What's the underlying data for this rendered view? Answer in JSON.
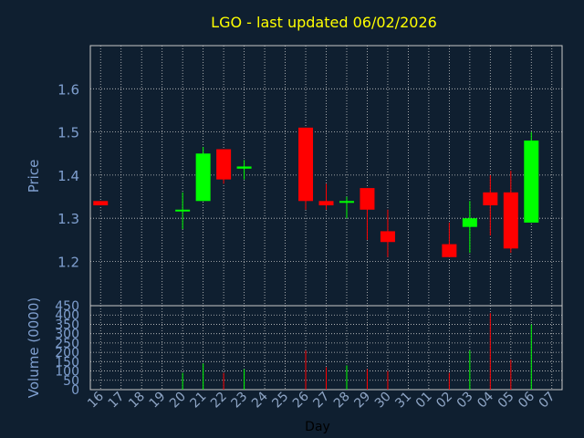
{
  "chart_data": {
    "type": "candlestick",
    "title": "LGO - last updated 06/02/2026",
    "xlabel": "Day",
    "price_panel": {
      "ylabel": "Price",
      "ylim": [
        1.0975,
        1.7
      ],
      "yticks": [
        "1.2",
        "1.3",
        "1.4",
        "1.5",
        "1.6"
      ],
      "grid": true
    },
    "volume_panel": {
      "ylabel": "Volume (0000)",
      "ylim": [
        0,
        450
      ],
      "yticks": [
        "0",
        "50",
        "100",
        "150",
        "200",
        "250",
        "300",
        "350",
        "400",
        "450"
      ],
      "grid": true
    },
    "days": [
      "16",
      "17",
      "18",
      "19",
      "20",
      "21",
      "22",
      "23",
      "24",
      "25",
      "26",
      "27",
      "28",
      "29",
      "30",
      "31",
      "01",
      "02",
      "03",
      "04",
      "05",
      "06",
      "07"
    ],
    "candles": [
      {
        "day": "16",
        "open": 1.34,
        "high": 1.34,
        "low": 1.33,
        "close": 1.33,
        "volume": 0
      },
      {
        "day": "20",
        "open": 1.32,
        "high": 1.36,
        "low": 1.275,
        "close": 1.32,
        "volume": 90
      },
      {
        "day": "21",
        "open": 1.34,
        "high": 1.465,
        "low": 1.34,
        "close": 1.45,
        "volume": 140
      },
      {
        "day": "22",
        "open": 1.46,
        "high": 1.46,
        "low": 1.38,
        "close": 1.39,
        "volume": 90
      },
      {
        "day": "23",
        "open": 1.415,
        "high": 1.435,
        "low": 1.39,
        "close": 1.42,
        "volume": 110
      },
      {
        "day": "26",
        "open": 1.51,
        "high": 1.51,
        "low": 1.32,
        "close": 1.34,
        "volume": 210
      },
      {
        "day": "27",
        "open": 1.34,
        "high": 1.38,
        "low": 1.32,
        "close": 1.33,
        "volume": 120
      },
      {
        "day": "28",
        "open": 1.34,
        "high": 1.35,
        "low": 1.3,
        "close": 1.34,
        "volume": 130
      },
      {
        "day": "29",
        "open": 1.37,
        "high": 1.37,
        "low": 1.25,
        "close": 1.32,
        "volume": 110
      },
      {
        "day": "30",
        "open": 1.27,
        "high": 1.32,
        "low": 1.21,
        "close": 1.245,
        "volume": 100
      },
      {
        "day": "02",
        "open": 1.24,
        "high": 1.29,
        "low": 1.21,
        "close": 1.21,
        "volume": 90
      },
      {
        "day": "03",
        "open": 1.28,
        "high": 1.34,
        "low": 1.22,
        "close": 1.3,
        "volume": 210
      },
      {
        "day": "04",
        "open": 1.36,
        "high": 1.4,
        "low": 1.26,
        "close": 1.33,
        "volume": 410
      },
      {
        "day": "05",
        "open": 1.36,
        "high": 1.41,
        "low": 1.22,
        "close": 1.23,
        "volume": 160
      },
      {
        "day": "06",
        "open": 1.29,
        "high": 1.5,
        "low": 1.29,
        "close": 1.48,
        "volume": 350
      }
    ],
    "colors": {
      "background": "#0f1f30",
      "plot": "#0f1f30",
      "frame": "#c8c8c8",
      "grid": "#c8c8c8",
      "up": "#00ff00",
      "down": "#ff0000",
      "title": "#ffff00",
      "labels": "#7f9fcf",
      "day_labels": "#8fa6c6"
    }
  }
}
